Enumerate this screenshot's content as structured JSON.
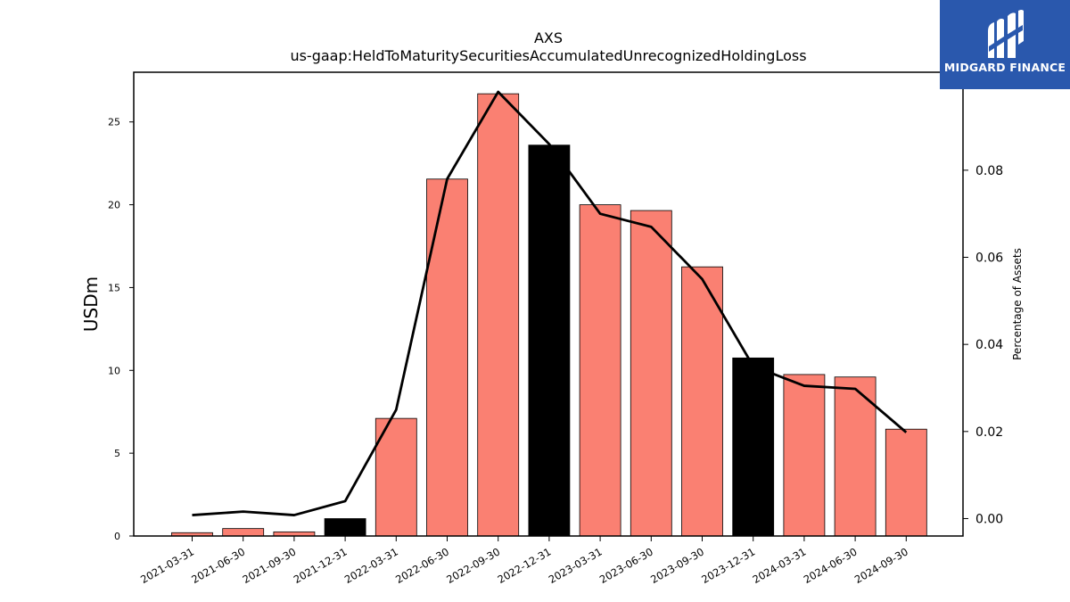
{
  "logo": {
    "text": "MIDGARD FINANCE",
    "bg_color": "#2a58ad"
  },
  "chart_data": {
    "type": "bar",
    "title": "AXS",
    "subtitle": "us-gaap:HeldToMaturitySecuritiesAccumulatedUnrecognizedHoldingLoss",
    "ylabel": "USDm",
    "y2label": "Percentage of Assets",
    "ylim": [
      0,
      28
    ],
    "y2lim": [
      -0.004,
      0.1025
    ],
    "yticks": [
      0,
      5,
      10,
      15,
      20,
      25
    ],
    "y2ticks": [
      0.0,
      0.02,
      0.04,
      0.06,
      0.08
    ],
    "y2tick_labels": [
      "0.00",
      "0.02",
      "0.04",
      "0.06",
      "0.08"
    ],
    "grid": false,
    "categories": [
      "2021-03-31",
      "2021-06-30",
      "2021-09-30",
      "2021-12-31",
      "2022-03-31",
      "2022-06-30",
      "2022-09-30",
      "2022-12-31",
      "2023-03-31",
      "2023-06-30",
      "2023-09-30",
      "2023-12-31",
      "2024-03-31",
      "2024-06-30",
      "2024-09-30"
    ],
    "series": [
      {
        "kind": "bar",
        "axis": "left",
        "values": [
          0.2,
          0.45,
          0.25,
          1.05,
          7.1,
          21.55,
          26.7,
          23.6,
          20.0,
          19.65,
          16.25,
          10.75,
          9.75,
          9.6,
          6.45
        ],
        "colors": [
          "#fa8072",
          "#fa8072",
          "#fa8072",
          "#000000",
          "#fa8072",
          "#fa8072",
          "#fa8072",
          "#000000",
          "#fa8072",
          "#fa8072",
          "#fa8072",
          "#000000",
          "#fa8072",
          "#fa8072",
          "#fa8072"
        ]
      },
      {
        "kind": "line",
        "axis": "right",
        "color": "#000000",
        "values": [
          0.0008,
          0.0016,
          0.0008,
          0.004,
          0.025,
          0.078,
          0.098,
          0.086,
          0.07,
          0.067,
          0.055,
          0.035,
          0.0305,
          0.0298,
          0.0198
        ]
      }
    ]
  }
}
